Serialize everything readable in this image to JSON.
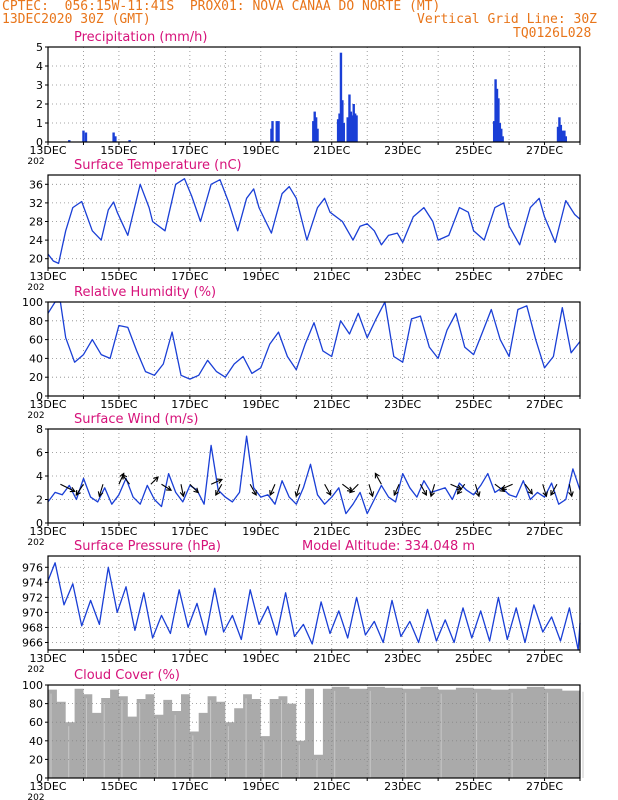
{
  "header": {
    "station": "CPTEC:  056:15W-11:41S  PROX01: NOVA CANAA DO NORTE (MT)",
    "date": "13DEC2020 30Z (GMT)",
    "grid_line": "Vertical Grid Line: 30Z",
    "code": "TQ0126L028"
  },
  "colors": {
    "header": "#e8751a",
    "title": "#d6127a",
    "series": "#1a3fd6",
    "cloud": "#aaaaaa",
    "wind_arrow": "#000000"
  },
  "x_tick_labels": [
    "13DEC",
    "15DEC",
    "17DEC",
    "19DEC",
    "21DEC",
    "23DEC",
    "25DEC",
    "27DEC"
  ],
  "year_stub": "202",
  "chart_data": [
    {
      "type": "bar",
      "id": "precip",
      "title": "Precipitation (mm/h)",
      "x_range_days": [
        13,
        28
      ],
      "ylim": [
        0,
        5
      ],
      "yticks": [
        0,
        1,
        2,
        3,
        4,
        5
      ],
      "grid": true,
      "bars": [
        [
          13.6,
          0.1
        ],
        [
          14.0,
          0.6
        ],
        [
          14.07,
          0.5
        ],
        [
          14.85,
          0.5
        ],
        [
          14.9,
          0.3
        ],
        [
          15.3,
          0.1
        ],
        [
          19.3,
          0.7
        ],
        [
          19.33,
          1.1
        ],
        [
          19.45,
          1.1
        ],
        [
          19.5,
          1.1
        ],
        [
          20.48,
          1.1
        ],
        [
          20.52,
          1.6
        ],
        [
          20.56,
          1.3
        ],
        [
          20.6,
          0.7
        ],
        [
          21.18,
          1.2
        ],
        [
          21.22,
          1.5
        ],
        [
          21.26,
          4.7
        ],
        [
          21.3,
          2.2
        ],
        [
          21.34,
          1.0
        ],
        [
          21.45,
          1.3
        ],
        [
          21.5,
          2.5
        ],
        [
          21.54,
          1.6
        ],
        [
          21.58,
          1.4
        ],
        [
          21.62,
          2.0
        ],
        [
          21.66,
          1.5
        ],
        [
          21.7,
          1.4
        ],
        [
          25.58,
          1.1
        ],
        [
          25.62,
          3.3
        ],
        [
          25.66,
          2.8
        ],
        [
          25.7,
          2.3
        ],
        [
          25.74,
          1.0
        ],
        [
          25.78,
          0.7
        ],
        [
          25.82,
          0.3
        ],
        [
          27.38,
          0.8
        ],
        [
          27.42,
          1.3
        ],
        [
          27.46,
          0.9
        ],
        [
          27.5,
          0.6
        ],
        [
          27.56,
          0.6
        ],
        [
          27.6,
          0.3
        ]
      ]
    },
    {
      "type": "line",
      "id": "temp",
      "title": "Surface Temperature (nC)",
      "x_range_days": [
        13,
        28
      ],
      "ylim": [
        18,
        38
      ],
      "yticks": [
        20,
        24,
        28,
        32,
        36
      ],
      "grid": true,
      "x": [
        13,
        13.15,
        13.3,
        13.5,
        13.7,
        13.95,
        14.25,
        14.5,
        14.7,
        14.85,
        14.95,
        15.25,
        15.6,
        15.85,
        15.95,
        16.3,
        16.6,
        16.85,
        17.05,
        17.3,
        17.6,
        17.85,
        18.1,
        18.35,
        18.6,
        18.8,
        18.95,
        19.3,
        19.6,
        19.8,
        20.0,
        20.3,
        20.6,
        20.8,
        20.95,
        21.3,
        21.45,
        21.6,
        21.8,
        22.0,
        22.2,
        22.4,
        22.6,
        22.85,
        23.0,
        23.3,
        23.6,
        23.85,
        24.0,
        24.3,
        24.6,
        24.85,
        25.0,
        25.3,
        25.6,
        25.85,
        26.0,
        26.3,
        26.6,
        26.85,
        27.0,
        27.3,
        27.6,
        27.85,
        28.0
      ],
      "y": [
        21.0,
        19.5,
        19.0,
        26.0,
        31.0,
        32.3,
        26.0,
        24.0,
        30.5,
        32.2,
        30.0,
        25.0,
        36.0,
        31.0,
        28.0,
        26.0,
        36.0,
        37.2,
        33.5,
        28.0,
        36.0,
        37.0,
        32.0,
        26.0,
        33.0,
        35.0,
        31.0,
        25.5,
        34.0,
        35.5,
        33.0,
        24.0,
        31.0,
        33.0,
        30.0,
        28.0,
        26.0,
        24.0,
        27.0,
        27.5,
        26.0,
        23.0,
        25.0,
        25.5,
        23.5,
        29.0,
        31.0,
        28.0,
        24.0,
        25.0,
        31.0,
        30.0,
        26.0,
        24.0,
        31.0,
        32.0,
        27.0,
        23.0,
        31.0,
        33.0,
        29.0,
        23.5,
        32.5,
        29.5,
        28.5
      ]
    },
    {
      "type": "line",
      "id": "rh",
      "title": "Relative Humidity (%)",
      "x_range_days": [
        13,
        28
      ],
      "ylim": [
        0,
        100
      ],
      "yticks": [
        0,
        20,
        40,
        60,
        80,
        100
      ],
      "grid": true,
      "x": [
        13,
        13.2,
        13.35,
        13.5,
        13.75,
        14.0,
        14.25,
        14.5,
        14.75,
        15.0,
        15.25,
        15.5,
        15.75,
        16.0,
        16.25,
        16.5,
        16.75,
        17.0,
        17.25,
        17.5,
        17.75,
        18.0,
        18.25,
        18.5,
        18.75,
        19.0,
        19.25,
        19.5,
        19.75,
        20.0,
        20.25,
        20.5,
        20.75,
        21.0,
        21.25,
        21.5,
        21.75,
        22.0,
        22.25,
        22.5,
        22.75,
        23.0,
        23.25,
        23.5,
        23.75,
        24.0,
        24.25,
        24.5,
        24.75,
        25.0,
        25.25,
        25.5,
        25.75,
        26.0,
        26.25,
        26.5,
        26.75,
        27.0,
        27.25,
        27.5,
        27.75,
        28.0
      ],
      "y": [
        88,
        100,
        100,
        62,
        36,
        44,
        60,
        44,
        40,
        75,
        73,
        48,
        26,
        22,
        34,
        68,
        22,
        18,
        22,
        38,
        26,
        20,
        34,
        42,
        24,
        30,
        55,
        68,
        42,
        28,
        55,
        78,
        48,
        42,
        80,
        66,
        88,
        62,
        82,
        100,
        42,
        36,
        82,
        85,
        52,
        40,
        70,
        88,
        52,
        44,
        68,
        92,
        60,
        42,
        92,
        96,
        60,
        30,
        42,
        94,
        46,
        58
      ]
    },
    {
      "type": "line",
      "id": "wind",
      "title": "Surface Wind (m/s)",
      "x_range_days": [
        13,
        28
      ],
      "ylim": [
        0,
        8
      ],
      "yticks": [
        0,
        2,
        4,
        6,
        8
      ],
      "grid": true,
      "x": [
        13,
        13.2,
        13.4,
        13.6,
        13.8,
        14.0,
        14.2,
        14.4,
        14.6,
        14.8,
        15.0,
        15.2,
        15.4,
        15.6,
        15.8,
        16.0,
        16.2,
        16.4,
        16.6,
        16.8,
        17.0,
        17.2,
        17.4,
        17.6,
        17.8,
        18.0,
        18.2,
        18.4,
        18.6,
        18.8,
        19.0,
        19.2,
        19.4,
        19.6,
        19.8,
        20.0,
        20.2,
        20.4,
        20.6,
        20.8,
        21.0,
        21.2,
        21.4,
        21.6,
        21.8,
        22.0,
        22.2,
        22.4,
        22.6,
        22.8,
        23.0,
        23.2,
        23.4,
        23.6,
        23.8,
        24.0,
        24.2,
        24.4,
        24.6,
        24.8,
        25.0,
        25.2,
        25.4,
        25.6,
        25.8,
        26.0,
        26.2,
        26.4,
        26.6,
        26.8,
        27.0,
        27.2,
        27.4,
        27.6,
        27.8,
        28.0
      ],
      "y": [
        1.8,
        2.6,
        2.4,
        3.2,
        2.0,
        3.8,
        2.2,
        1.8,
        3.0,
        1.6,
        2.4,
        3.8,
        2.2,
        1.6,
        3.2,
        2.0,
        1.4,
        4.2,
        2.6,
        1.8,
        3.2,
        2.8,
        1.6,
        6.6,
        2.8,
        2.2,
        1.8,
        2.6,
        7.4,
        3.0,
        2.2,
        2.4,
        1.6,
        3.6,
        2.2,
        1.6,
        3.0,
        5.0,
        2.4,
        1.6,
        2.2,
        3.0,
        0.8,
        1.6,
        2.6,
        0.8,
        2.0,
        3.2,
        2.2,
        1.8,
        4.2,
        3.0,
        2.2,
        3.6,
        2.6,
        2.8,
        3.0,
        2.0,
        3.4,
        2.8,
        2.4,
        3.2,
        4.2,
        2.6,
        3.0,
        2.4,
        2.2,
        3.6,
        2.0,
        2.6,
        2.2,
        3.4,
        1.6,
        2.0,
        4.6,
        2.8
      ],
      "arrows": [
        [
          13.35,
          1.2,
          -0.6
        ],
        [
          14.0,
          -0.6,
          -0.9
        ],
        [
          14.55,
          -0.3,
          -1.0
        ],
        [
          15.0,
          0.4,
          0.9
        ],
        [
          15.3,
          -0.6,
          0.8
        ],
        [
          15.9,
          0.6,
          0.6
        ],
        [
          16.2,
          0.8,
          -0.5
        ],
        [
          16.75,
          0.2,
          -1.0
        ],
        [
          17.0,
          0.7,
          -0.7
        ],
        [
          17.6,
          0.9,
          0.4
        ],
        [
          17.9,
          -0.5,
          -0.9
        ],
        [
          18.7,
          0.5,
          -0.9
        ],
        [
          19.4,
          -0.4,
          -0.9
        ],
        [
          20.1,
          -0.3,
          -1.0
        ],
        [
          20.8,
          0.5,
          -0.9
        ],
        [
          21.3,
          0.8,
          -0.6
        ],
        [
          21.75,
          -0.7,
          -0.7
        ],
        [
          22.05,
          0.3,
          -1.0
        ],
        [
          22.4,
          -0.5,
          0.9
        ],
        [
          22.9,
          -0.4,
          -0.9
        ],
        [
          23.5,
          0.5,
          -0.9
        ],
        [
          23.9,
          -0.3,
          -1.0
        ],
        [
          24.35,
          0.9,
          -0.4
        ],
        [
          24.75,
          -0.6,
          -0.8
        ],
        [
          25.05,
          0.3,
          -1.0
        ],
        [
          25.6,
          0.8,
          -0.6
        ],
        [
          26.1,
          -0.9,
          -0.4
        ],
        [
          26.45,
          0.6,
          -0.8
        ],
        [
          26.95,
          0.3,
          -1.0
        ],
        [
          27.35,
          -0.5,
          -0.9
        ],
        [
          27.7,
          0.2,
          -1.0
        ]
      ]
    },
    {
      "type": "line",
      "id": "pres",
      "title": "Surface Pressure (hPa)",
      "extra_label": "Model Altitude: 334.048 m",
      "x_range_days": [
        13,
        28
      ],
      "ylim": [
        965,
        977.5
      ],
      "yticks": [
        966,
        968,
        970,
        972,
        974,
        976
      ],
      "grid": true,
      "x": [
        13,
        13.2,
        13.45,
        13.7,
        13.95,
        14.2,
        14.45,
        14.7,
        14.95,
        15.2,
        15.45,
        15.7,
        15.95,
        16.2,
        16.45,
        16.7,
        16.95,
        17.2,
        17.45,
        17.7,
        17.95,
        18.2,
        18.45,
        18.7,
        18.95,
        19.2,
        19.45,
        19.7,
        19.95,
        20.2,
        20.45,
        20.7,
        20.95,
        21.2,
        21.45,
        21.7,
        21.95,
        22.2,
        22.45,
        22.7,
        22.95,
        23.2,
        23.45,
        23.7,
        23.95,
        24.2,
        24.45,
        24.7,
        24.95,
        25.2,
        25.45,
        25.7,
        25.95,
        26.2,
        26.45,
        26.7,
        26.95,
        27.2,
        27.45,
        27.7,
        27.95,
        28.0
      ],
      "y": [
        974.2,
        976.6,
        971.0,
        973.8,
        968.2,
        971.6,
        968.4,
        976.0,
        970.0,
        973.4,
        967.6,
        972.6,
        966.6,
        969.6,
        967.2,
        973.0,
        968.0,
        971.2,
        967.0,
        973.2,
        967.4,
        969.6,
        966.4,
        973.0,
        968.4,
        970.8,
        967.0,
        972.6,
        966.8,
        968.4,
        965.8,
        971.4,
        967.2,
        970.2,
        966.6,
        972.0,
        967.0,
        968.8,
        966.0,
        971.6,
        966.8,
        968.8,
        966.0,
        970.4,
        966.2,
        969.0,
        966.0,
        970.6,
        966.6,
        970.2,
        966.2,
        972.0,
        966.4,
        970.6,
        966.0,
        971.0,
        967.4,
        969.4,
        966.2,
        970.6,
        965.0,
        968.6
      ]
    },
    {
      "type": "bar",
      "id": "cloud",
      "title": "Cloud Cover (%)",
      "x_range_days": [
        13,
        28
      ],
      "ylim": [
        0,
        100
      ],
      "yticks": [
        0,
        20,
        40,
        60,
        80,
        100
      ],
      "grid": true,
      "x": [
        13.0,
        13.25,
        13.5,
        13.75,
        14.0,
        14.25,
        14.5,
        14.75,
        15.0,
        15.25,
        15.5,
        15.75,
        16.0,
        16.25,
        16.5,
        16.75,
        17.0,
        17.25,
        17.5,
        17.75,
        18.0,
        18.25,
        18.5,
        18.75,
        19.0,
        19.25,
        19.5,
        19.75,
        20.0,
        20.25,
        20.5,
        20.75,
        21.0,
        21.5,
        22.0,
        22.5,
        23.0,
        23.5,
        24.0,
        24.5,
        25.0,
        25.5,
        26.0,
        26.5,
        27.0,
        27.5,
        28.0
      ],
      "values": [
        95,
        82,
        60,
        96,
        90,
        70,
        86,
        95,
        88,
        66,
        85,
        90,
        68,
        84,
        72,
        90,
        50,
        70,
        88,
        82,
        60,
        75,
        90,
        85,
        45,
        85,
        88,
        80,
        40,
        96,
        25,
        96,
        98,
        96,
        98,
        97,
        96,
        98,
        95,
        97,
        96,
        95,
        96,
        98,
        96,
        94,
        97
      ]
    }
  ]
}
